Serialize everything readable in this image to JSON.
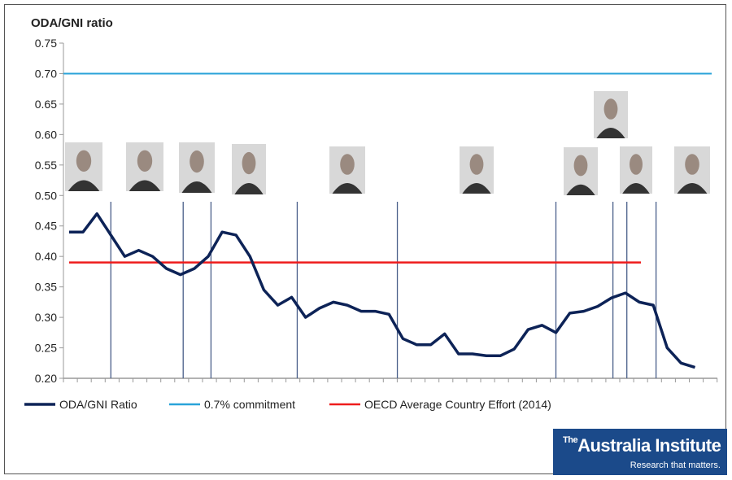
{
  "chart_data": {
    "type": "line",
    "title": "",
    "ylabel": "ODA/GNI ratio",
    "xlabel": "",
    "ylim": [
      0.2,
      0.75
    ],
    "yticks": [
      "0.20",
      "0.25",
      "0.30",
      "0.35",
      "0.40",
      "0.45",
      "0.50",
      "0.55",
      "0.60",
      "0.65",
      "0.70",
      "0.75"
    ],
    "grid": false,
    "legend_position": "bottom",
    "series": [
      {
        "name": "ODA/GNI Ratio",
        "color": "#0d2357",
        "values": [
          0.44,
          0.44,
          0.47,
          0.435,
          0.4,
          0.41,
          0.4,
          0.38,
          0.37,
          0.38,
          0.4,
          0.44,
          0.435,
          0.4,
          0.345,
          0.32,
          0.333,
          0.3,
          0.315,
          0.325,
          0.32,
          0.31,
          0.31,
          0.305,
          0.265,
          0.255,
          0.255,
          0.273,
          0.24,
          0.24,
          0.237,
          0.237,
          0.248,
          0.28,
          0.287,
          0.275,
          0.307,
          0.31,
          0.318,
          0.332,
          0.34,
          0.325,
          0.32,
          0.25,
          0.225,
          0.218
        ]
      },
      {
        "name": "0.7% commitment",
        "color": "#29a3d9",
        "constant": 0.7
      },
      {
        "name": "OECD Average Country Effort (2014)",
        "color": "#ee1c1c",
        "constant": 0.39
      }
    ],
    "government_change_indices": [
      3,
      8.2,
      10.2,
      16.4,
      23.6,
      35,
      39.1,
      40.1,
      42.2
    ]
  },
  "logo": {
    "the": "The",
    "name": "Australia Institute",
    "tagline": "Research that matters."
  }
}
